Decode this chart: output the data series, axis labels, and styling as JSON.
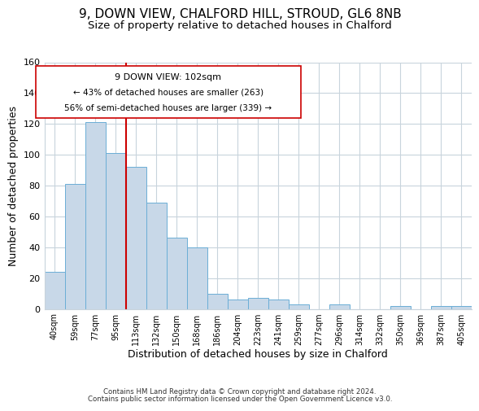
{
  "title": "9, DOWN VIEW, CHALFORD HILL, STROUD, GL6 8NB",
  "subtitle": "Size of property relative to detached houses in Chalford",
  "xlabel": "Distribution of detached houses by size in Chalford",
  "ylabel": "Number of detached properties",
  "bar_labels": [
    "40sqm",
    "59sqm",
    "77sqm",
    "95sqm",
    "113sqm",
    "132sqm",
    "150sqm",
    "168sqm",
    "186sqm",
    "204sqm",
    "223sqm",
    "241sqm",
    "259sqm",
    "277sqm",
    "296sqm",
    "314sqm",
    "332sqm",
    "350sqm",
    "369sqm",
    "387sqm",
    "405sqm"
  ],
  "bar_values": [
    24,
    81,
    121,
    101,
    92,
    69,
    46,
    40,
    10,
    6,
    7,
    6,
    3,
    0,
    3,
    0,
    0,
    2,
    0,
    2,
    2
  ],
  "bar_color": "#c8d8e8",
  "bar_edge_color": "#6baed6",
  "vline_x": 3.5,
  "vline_color": "#cc0000",
  "ylim": [
    0,
    160
  ],
  "yticks": [
    0,
    20,
    40,
    60,
    80,
    100,
    120,
    140,
    160
  ],
  "annotation_title": "9 DOWN VIEW: 102sqm",
  "annotation_line1": "← 43% of detached houses are smaller (263)",
  "annotation_line2": "56% of semi-detached houses are larger (339) →",
  "annotation_box_color": "#ffffff",
  "annotation_box_edge": "#cc0000",
  "footer1": "Contains HM Land Registry data © Crown copyright and database right 2024.",
  "footer2": "Contains public sector information licensed under the Open Government Licence v3.0.",
  "background_color": "#ffffff",
  "grid_color": "#c8d4dc",
  "title_fontsize": 11,
  "subtitle_fontsize": 9.5
}
